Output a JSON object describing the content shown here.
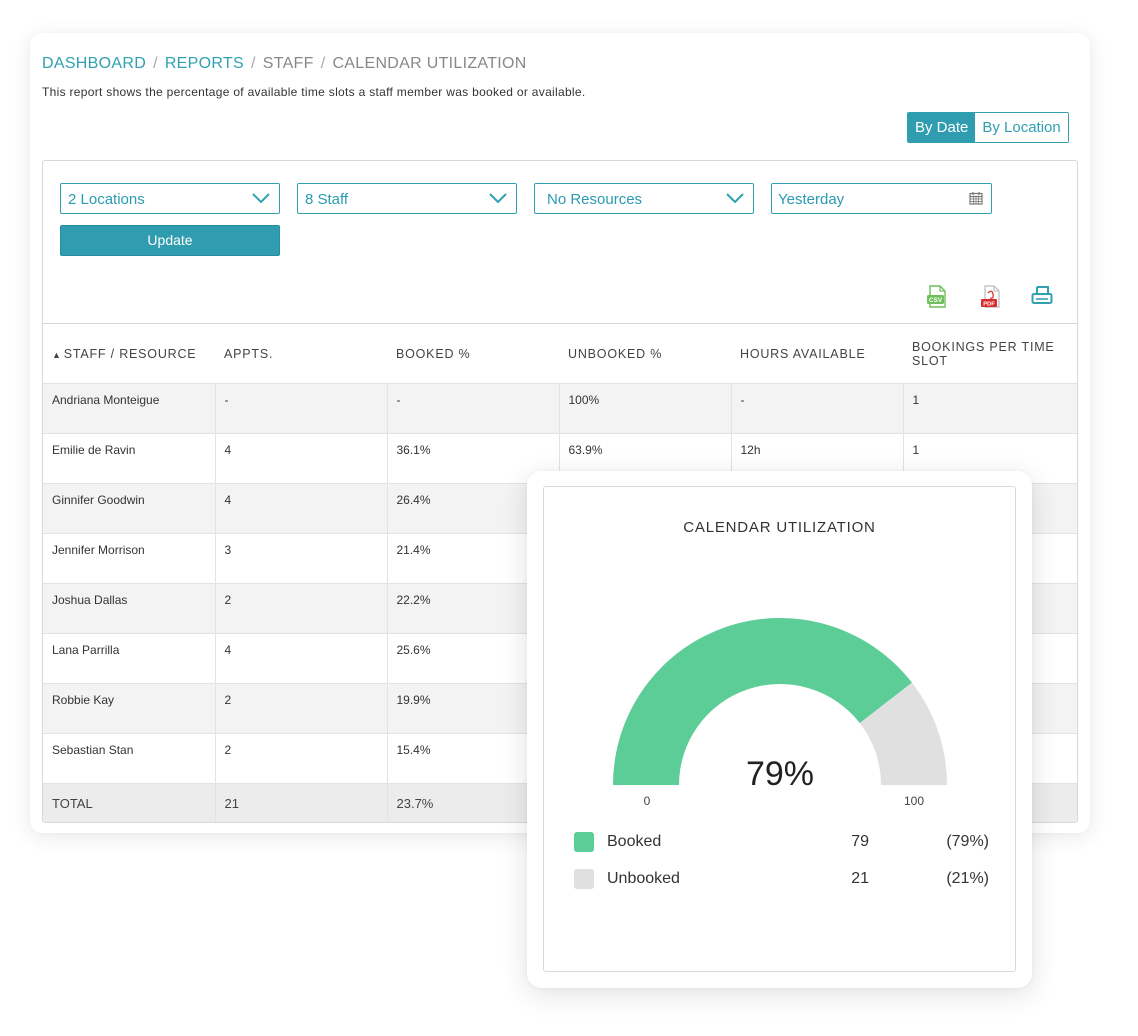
{
  "breadcrumb": {
    "items": [
      {
        "label": "DASHBOARD",
        "link": true
      },
      {
        "label": "REPORTS",
        "link": true
      },
      {
        "label": "STAFF",
        "link": false
      },
      {
        "label": "CALENDAR UTILIZATION",
        "link": false
      }
    ],
    "separator": "/"
  },
  "description": "This report shows the percentage of available time slots a staff member was booked or available.",
  "view_toggle": {
    "by_date": "By Date",
    "by_location": "By Location",
    "active": "by_date"
  },
  "filters": {
    "locations": "2 Locations",
    "staff": "8 Staff",
    "resources": "No Resources",
    "date": "Yesterday",
    "update_label": "Update"
  },
  "export": {
    "csv": "csv-export-icon",
    "pdf": "pdf-export-icon",
    "print": "print-icon"
  },
  "table": {
    "sort_indicator": "▲",
    "columns": [
      "STAFF / RESOURCE",
      "APPTS.",
      "BOOKED %",
      "UNBOOKED %",
      "HOURS AVAILABLE",
      "BOOKINGS PER TIME SLOT"
    ],
    "rows": [
      [
        "Andriana Monteigue",
        "-",
        "-",
        "100%",
        "-",
        "1"
      ],
      [
        "Emilie de Ravin",
        "4",
        "36.1%",
        "63.9%",
        "12h",
        "1"
      ],
      [
        "Ginnifer Goodwin",
        "4",
        "26.4%",
        "",
        "",
        ""
      ],
      [
        "Jennifer Morrison",
        "3",
        "21.4%",
        "",
        "",
        ""
      ],
      [
        "Joshua Dallas",
        "2",
        "22.2%",
        "",
        "",
        ""
      ],
      [
        "Lana Parrilla",
        "4",
        "25.6%",
        "",
        "",
        ""
      ],
      [
        "Robbie Kay",
        "2",
        "19.9%",
        "",
        "",
        ""
      ],
      [
        "Sebastian Stan",
        "2",
        "15.4%",
        "",
        "",
        ""
      ]
    ],
    "total": [
      "TOTAL",
      "21",
      "23.7%",
      "",
      "",
      ""
    ]
  },
  "chart_data": {
    "type": "gauge",
    "title": "CALENDAR UTILIZATION",
    "center_label": "79%",
    "min": 0,
    "max": 100,
    "min_label": "0",
    "max_label": "100",
    "value": 79,
    "series": [
      {
        "name": "Booked",
        "value": 79,
        "percent": "(79%)",
        "color": "#5ccd96"
      },
      {
        "name": "Unbooked",
        "value": 21,
        "percent": "(21%)",
        "color": "#e0e0e0"
      }
    ]
  },
  "colors": {
    "accent": "#2fa1b1",
    "booked": "#5ccd96",
    "unbooked": "#e0e0e0"
  }
}
